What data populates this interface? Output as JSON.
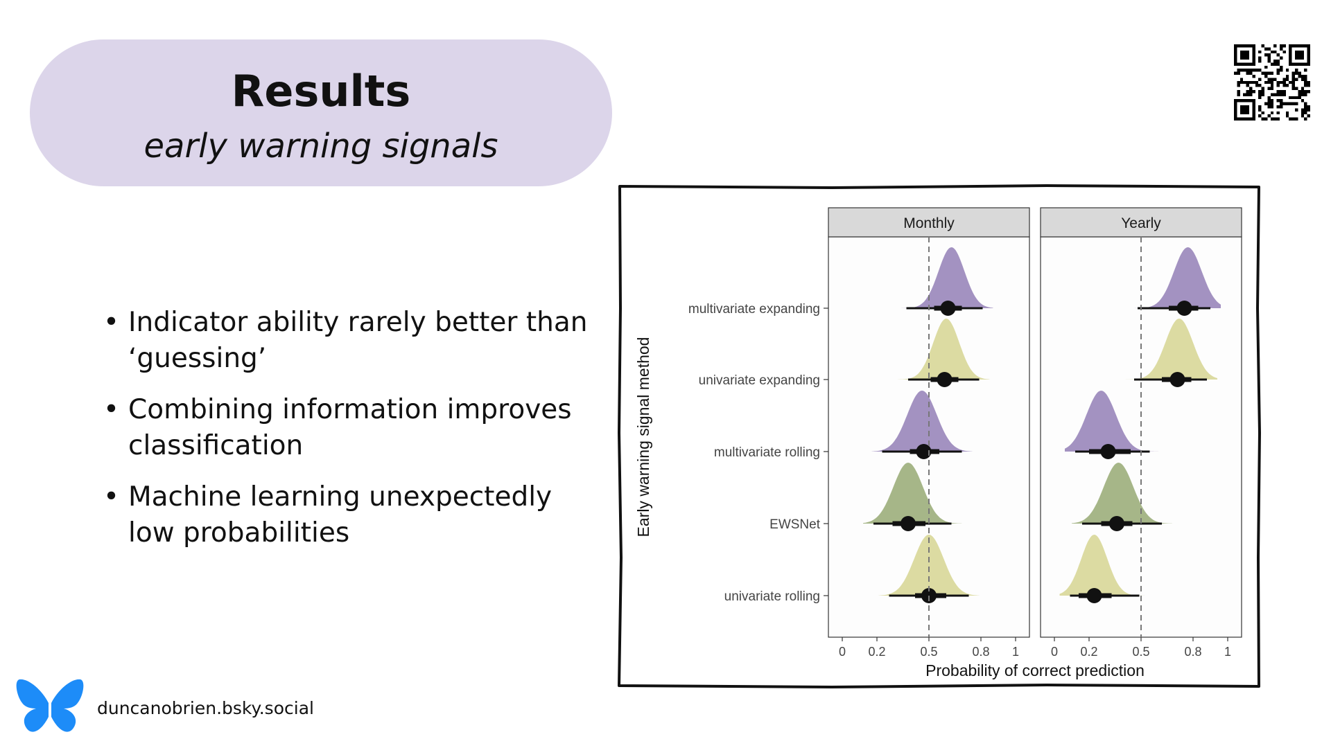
{
  "slide": {
    "title": "Results",
    "subtitle": "early warning signals",
    "bullets": [
      {
        "line1": "Indicator ability rarely better than",
        "line2": "‘guessing’"
      },
      {
        "line1": "Combining information improves",
        "line2": "classification"
      },
      {
        "line1": "Machine learning unexpectedly",
        "line2": "low probabilities"
      }
    ],
    "bullet_symbol": "•",
    "social_handle": "duncanobrien.bsky.social",
    "logo_icon": "butterfly-icon",
    "qr_icon": "qr-code-icon"
  },
  "colors": {
    "pill": "#dcd5ea",
    "multivariate": "#9b89bc",
    "univariate": "#d9d89a",
    "ewsnet": "#9eb07e",
    "butterfly": "#1d8cf8"
  },
  "chart_data": {
    "type": "halfeye",
    "facets": [
      "Monthly",
      "Yearly"
    ],
    "categories": [
      "multivariate expanding",
      "univariate expanding",
      "multivariate rolling",
      "EWSNet",
      "univariate rolling"
    ],
    "xlabel": "Probability of correct prediction",
    "ylabel": "Early warning signal method",
    "xlim": [
      0,
      1
    ],
    "xticks": [
      0,
      0.2,
      0.5,
      0.8,
      1
    ],
    "xtick_labels": [
      "0",
      "0.2",
      "0.5",
      "0.8",
      "1"
    ],
    "reference_line": 0.5,
    "series": [
      {
        "facet": "Monthly",
        "method": "multivariate expanding",
        "group": "multivariate",
        "median": 0.61,
        "q66": [
          0.53,
          0.69
        ],
        "q95": [
          0.37,
          0.81
        ],
        "mode": 0.63,
        "sd": 0.075
      },
      {
        "facet": "Monthly",
        "method": "univariate expanding",
        "group": "univariate",
        "median": 0.59,
        "q66": [
          0.51,
          0.67
        ],
        "q95": [
          0.38,
          0.79
        ],
        "mode": 0.6,
        "sd": 0.075
      },
      {
        "facet": "Monthly",
        "method": "multivariate rolling",
        "group": "multivariate",
        "median": 0.47,
        "q66": [
          0.39,
          0.56
        ],
        "q95": [
          0.23,
          0.69
        ],
        "mode": 0.46,
        "sd": 0.085
      },
      {
        "facet": "Monthly",
        "method": "EWSNet",
        "group": "ewsnet",
        "median": 0.38,
        "q66": [
          0.29,
          0.48
        ],
        "q95": [
          0.18,
          0.63
        ],
        "mode": 0.38,
        "sd": 0.085
      },
      {
        "facet": "Monthly",
        "method": "univariate rolling",
        "group": "univariate",
        "median": 0.5,
        "q66": [
          0.42,
          0.6
        ],
        "q95": [
          0.27,
          0.73
        ],
        "mode": 0.5,
        "sd": 0.085
      },
      {
        "facet": "Yearly",
        "method": "multivariate expanding",
        "group": "multivariate",
        "median": 0.75,
        "q66": [
          0.66,
          0.83
        ],
        "q95": [
          0.48,
          0.9
        ],
        "mode": 0.77,
        "sd": 0.08
      },
      {
        "facet": "Yearly",
        "method": "univariate expanding",
        "group": "univariate",
        "median": 0.71,
        "q66": [
          0.62,
          0.79
        ],
        "q95": [
          0.46,
          0.88
        ],
        "mode": 0.72,
        "sd": 0.08
      },
      {
        "facet": "Yearly",
        "method": "multivariate rolling",
        "group": "multivariate",
        "median": 0.31,
        "q66": [
          0.2,
          0.44
        ],
        "q95": [
          0.12,
          0.55
        ],
        "mode": 0.27,
        "sd": 0.085
      },
      {
        "facet": "Yearly",
        "method": "EWSNet",
        "group": "ewsnet",
        "median": 0.36,
        "q66": [
          0.27,
          0.45
        ],
        "q95": [
          0.16,
          0.62
        ],
        "mode": 0.37,
        "sd": 0.085
      },
      {
        "facet": "Yearly",
        "method": "univariate rolling",
        "group": "univariate",
        "median": 0.23,
        "q66": [
          0.14,
          0.33
        ],
        "q95": [
          0.09,
          0.49
        ],
        "mode": 0.23,
        "sd": 0.075
      }
    ]
  }
}
